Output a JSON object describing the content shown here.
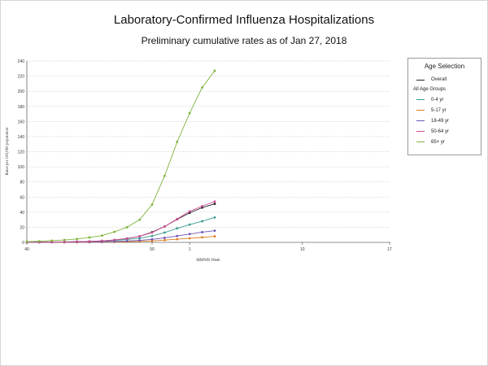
{
  "title": "Laboratory-Confirmed Influenza Hospitalizations",
  "subtitle": "Preliminary cumulative rates as of Jan 27, 2018",
  "legend": {
    "title": "Age Selection",
    "overall_label": "Overall",
    "group_heading": "All Age Groups"
  },
  "colors": {
    "overall": "#222222",
    "0-4 yr": "#3a9c94",
    "5-17 yr": "#e07a1f",
    "18-49 yr": "#6b54b5",
    "50-64 yr": "#d14c97",
    "65+ yr": "#7fb33d",
    "grid": "#bbbbbb",
    "axis": "#333333"
  },
  "chart_data": {
    "type": "line",
    "title": "Laboratory-Confirmed Influenza Hospitalizations",
    "subtitle": "Preliminary cumulative rates as of Jan 27, 2018",
    "xlabel": "MMWR Week",
    "ylabel": "Rates per 100,000 population",
    "ylim": [
      0,
      240
    ],
    "yticks": [
      0,
      20,
      40,
      60,
      80,
      100,
      120,
      140,
      160,
      180,
      200,
      220,
      240
    ],
    "xtick_labels": [
      "40",
      "50",
      "1",
      "10",
      "17"
    ],
    "grid": true,
    "legend_position": "right",
    "x": [
      "40",
      "41",
      "42",
      "43",
      "44",
      "45",
      "46",
      "47",
      "48",
      "49",
      "50",
      "51",
      "52",
      "1",
      "2",
      "3",
      "4"
    ],
    "series": [
      {
        "name": "Overall",
        "values": [
          0.2,
          0.3,
          0.4,
          0.6,
          0.9,
          1.3,
          2.0,
          3.2,
          5.2,
          8.0,
          13.5,
          21.0,
          30.5,
          39.0,
          46.0,
          51.0,
          null
        ]
      },
      {
        "name": "0-4 yr",
        "values": [
          0.2,
          0.3,
          0.4,
          0.6,
          0.9,
          1.2,
          1.8,
          2.6,
          3.8,
          5.5,
          8.5,
          13.0,
          18.5,
          23.5,
          28.0,
          33.0,
          null
        ]
      },
      {
        "name": "5-17 yr",
        "values": [
          0.1,
          0.1,
          0.1,
          0.2,
          0.2,
          0.3,
          0.4,
          0.6,
          0.9,
          1.3,
          2.0,
          3.0,
          4.2,
          5.4,
          6.6,
          8.0,
          null
        ]
      },
      {
        "name": "18-49 yr",
        "values": [
          0.1,
          0.2,
          0.2,
          0.3,
          0.4,
          0.6,
          0.8,
          1.2,
          1.8,
          2.6,
          4.0,
          6.0,
          8.5,
          11.0,
          13.5,
          15.5,
          null
        ]
      },
      {
        "name": "50-64 yr",
        "values": [
          0.2,
          0.3,
          0.4,
          0.6,
          0.9,
          1.3,
          2.0,
          3.2,
          5.0,
          8.0,
          13.0,
          21.0,
          31.0,
          41.0,
          48.0,
          54.0,
          null
        ]
      },
      {
        "name": "65+ yr",
        "values": [
          1.0,
          1.5,
          2.3,
          3.2,
          4.5,
          6.5,
          9.0,
          14.0,
          20.0,
          30.0,
          50.0,
          88.0,
          133.0,
          171.0,
          205.0,
          227.0,
          null
        ]
      }
    ]
  }
}
